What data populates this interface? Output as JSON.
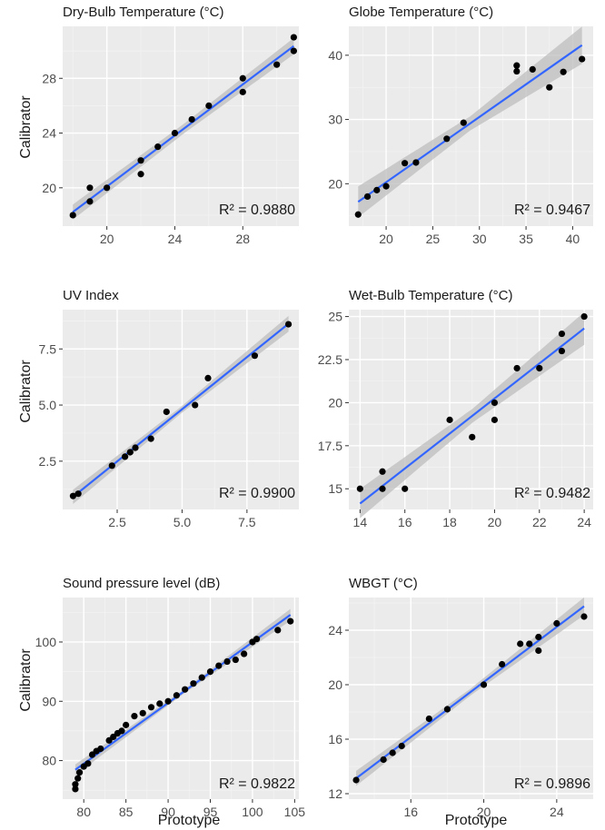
{
  "figure": {
    "y_axis_label": "Calibrator",
    "x_axis_label": "Prototype"
  },
  "colors": {
    "panel_bg": "#ebebeb",
    "grid_major": "#ffffff",
    "grid_minor": "#f4f4f4",
    "point": "#000000",
    "fit_line": "#3366ff",
    "ci_band": "#bdbdbd"
  },
  "chart_data": [
    {
      "type": "scatter",
      "title": "Dry-Bulb Temperature (°C)",
      "r2_label": "R² = 0.9880",
      "xlim": [
        17.4,
        31.3
      ],
      "ylim": [
        17.2,
        31.8
      ],
      "xticks": [
        20,
        24,
        28
      ],
      "yticks": [
        20,
        24,
        28
      ],
      "ci_halfwidth": [
        0.55,
        0.35,
        0.6
      ],
      "points": [
        [
          18,
          18
        ],
        [
          19,
          19
        ],
        [
          19,
          20
        ],
        [
          20,
          20
        ],
        [
          22,
          21
        ],
        [
          22,
          22
        ],
        [
          23,
          23
        ],
        [
          24,
          24
        ],
        [
          25,
          25
        ],
        [
          26,
          26
        ],
        [
          28,
          27
        ],
        [
          28,
          28
        ],
        [
          30,
          29
        ],
        [
          31,
          30
        ],
        [
          31,
          31
        ]
      ]
    },
    {
      "type": "scatter",
      "title": "Globe Temperature (°C)",
      "r2_label": "R² = 0.9467",
      "xlim": [
        16.0,
        42.2
      ],
      "ylim": [
        13.4,
        44.5
      ],
      "xticks": [
        20,
        25,
        30,
        35,
        40
      ],
      "yticks": [
        20,
        30,
        40
      ],
      "ci_halfwidth": [
        2.4,
        1.1,
        2.9
      ],
      "points": [
        [
          17,
          15.2
        ],
        [
          18,
          18
        ],
        [
          19,
          19
        ],
        [
          20,
          19.6
        ],
        [
          22,
          23.2
        ],
        [
          23.2,
          23.3
        ],
        [
          26.5,
          27
        ],
        [
          28.3,
          29.5
        ],
        [
          34,
          37.5
        ],
        [
          34,
          38.4
        ],
        [
          35.7,
          37.8
        ],
        [
          37.5,
          35
        ],
        [
          39,
          37.4
        ],
        [
          41,
          39.4
        ]
      ]
    },
    {
      "type": "scatter",
      "title": "UV Index",
      "r2_label": "R² = 0.9900",
      "xlim": [
        0.4,
        9.5
      ],
      "ylim": [
        0.35,
        9.25
      ],
      "xticks": [
        2.5,
        5.0,
        7.5
      ],
      "yticks": [
        2.5,
        5.0,
        7.5
      ],
      "ci_halfwidth": [
        0.32,
        0.15,
        0.35
      ],
      "points": [
        [
          0.8,
          0.95
        ],
        [
          1.0,
          1.05
        ],
        [
          2.3,
          2.3
        ],
        [
          2.8,
          2.7
        ],
        [
          3.0,
          2.9
        ],
        [
          3.2,
          3.1
        ],
        [
          3.8,
          3.5
        ],
        [
          4.4,
          4.7
        ],
        [
          5.5,
          5.0
        ],
        [
          6.0,
          6.2
        ],
        [
          7.8,
          7.2
        ],
        [
          9.1,
          8.6
        ]
      ]
    },
    {
      "type": "scatter",
      "title": "Wet-Bulb Temperature (°C)",
      "r2_label": "R² = 0.9482",
      "xlim": [
        13.5,
        24.4
      ],
      "ylim": [
        13.8,
        25.4
      ],
      "xticks": [
        14,
        16,
        18,
        20,
        22,
        24
      ],
      "yticks": [
        15.0,
        17.5,
        20.0,
        22.5,
        25.0
      ],
      "ci_halfwidth": [
        0.85,
        0.4,
        0.95
      ],
      "points": [
        [
          14,
          15
        ],
        [
          15,
          15
        ],
        [
          15,
          16
        ],
        [
          16,
          15
        ],
        [
          18,
          19
        ],
        [
          19,
          18
        ],
        [
          20,
          19
        ],
        [
          20,
          20
        ],
        [
          21,
          22
        ],
        [
          22,
          22
        ],
        [
          23,
          23
        ],
        [
          23,
          24
        ],
        [
          24,
          25
        ]
      ]
    },
    {
      "type": "scatter",
      "title": "Sound pressure level (dB)",
      "r2_label": "R² = 0.9822",
      "xlim": [
        77.5,
        105.5
      ],
      "ylim": [
        73.5,
        107.5
      ],
      "xticks": [
        80,
        85,
        90,
        95,
        100,
        105
      ],
      "yticks": [
        80,
        90,
        100
      ],
      "ci_halfwidth": [
        0.9,
        0.35,
        1.0
      ],
      "points": [
        [
          79,
          75.2
        ],
        [
          79,
          76
        ],
        [
          79.3,
          77
        ],
        [
          79.5,
          78
        ],
        [
          80,
          79
        ],
        [
          80.5,
          79.5
        ],
        [
          81,
          81
        ],
        [
          81.5,
          81.6
        ],
        [
          82,
          82
        ],
        [
          83,
          83.4
        ],
        [
          83.5,
          84
        ],
        [
          84,
          84.6
        ],
        [
          84.5,
          85
        ],
        [
          85,
          86
        ],
        [
          86,
          87.5
        ],
        [
          87,
          88
        ],
        [
          88,
          89
        ],
        [
          89,
          89.6
        ],
        [
          90,
          90
        ],
        [
          91,
          91
        ],
        [
          92,
          92
        ],
        [
          93,
          93
        ],
        [
          94,
          94
        ],
        [
          95,
          95
        ],
        [
          96,
          96
        ],
        [
          97,
          96.7
        ],
        [
          98,
          97
        ],
        [
          99,
          98
        ],
        [
          100,
          100
        ],
        [
          100.5,
          100.5
        ],
        [
          103,
          102
        ],
        [
          104.5,
          103.5
        ]
      ]
    },
    {
      "type": "scatter",
      "title": "WBGT (°C)",
      "r2_label": "R² = 0.9896",
      "xlim": [
        12.6,
        26.0
      ],
      "ylim": [
        11.6,
        26.4
      ],
      "xticks": [
        16,
        20,
        24
      ],
      "yticks": [
        12,
        16,
        20,
        24
      ],
      "ci_halfwidth": [
        0.55,
        0.25,
        0.65
      ],
      "points": [
        [
          13,
          13
        ],
        [
          14.5,
          14.5
        ],
        [
          15,
          15
        ],
        [
          15.5,
          15.5
        ],
        [
          17,
          17.5
        ],
        [
          18,
          18.2
        ],
        [
          20,
          20
        ],
        [
          21,
          21.5
        ],
        [
          22,
          23
        ],
        [
          22.5,
          23
        ],
        [
          23,
          22.5
        ],
        [
          23,
          23.5
        ],
        [
          24,
          24.5
        ],
        [
          25.5,
          25
        ]
      ]
    }
  ]
}
